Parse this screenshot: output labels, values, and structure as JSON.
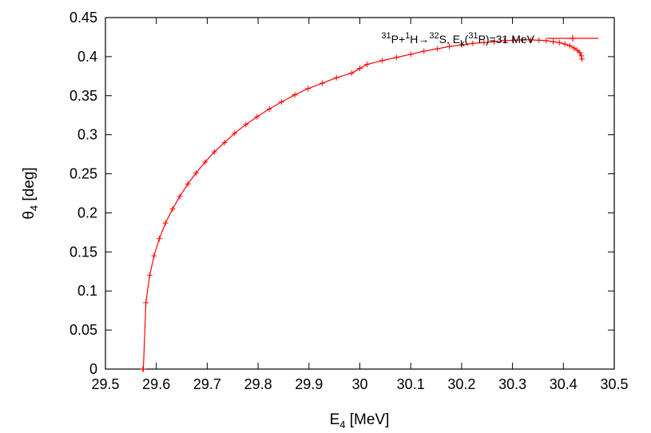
{
  "chart_data": {
    "type": "line",
    "xlabel": {
      "main": "E",
      "sub": "4",
      "unit": " [MeV]"
    },
    "ylabel": {
      "main": "θ",
      "sub": "4",
      "unit": " [deg]"
    },
    "xlim": [
      29.5,
      30.5
    ],
    "ylim": [
      0,
      0.45
    ],
    "x_ticks": [
      "29.5",
      "29.6",
      "29.7",
      "29.8",
      "29.9",
      "30",
      "30.1",
      "30.2",
      "30.3",
      "30.4",
      "30.5"
    ],
    "y_ticks": [
      "0",
      "0.05",
      "0.1",
      "0.15",
      "0.2",
      "0.25",
      "0.3",
      "0.35",
      "0.4",
      "0.45"
    ],
    "grid": false,
    "legend_position": "top-right",
    "series": [
      {
        "legend": {
          "p1_mass": "31",
          "p1": "P+",
          "p2_mass": "1",
          "p2": "H",
          "arrow": "→",
          "p3_mass": "32",
          "p3": "S, E",
          "k_sub": "k",
          "lp": "(",
          "p4_mass": "31",
          "p4": "P)=31 MeV"
        },
        "color": "#ff0000",
        "marker": "plus",
        "x": [
          29.5735,
          29.5745,
          29.5795,
          29.587,
          29.5955,
          29.606,
          29.618,
          29.632,
          29.646,
          29.662,
          29.678,
          29.696,
          29.714,
          29.734,
          29.754,
          29.776,
          29.798,
          29.822,
          29.846,
          29.872,
          29.898,
          29.926,
          29.954,
          29.984,
          30.0,
          30.014,
          30.044,
          30.072,
          30.1,
          30.126,
          30.152,
          30.176,
          30.2,
          30.222,
          30.244,
          30.264,
          30.284,
          30.302,
          30.32,
          30.336,
          30.352,
          30.366,
          30.38,
          30.392,
          30.403,
          30.4125,
          30.421,
          30.4275,
          30.4325,
          30.4355,
          30.4365
        ],
        "y": [
          0.0,
          0.0,
          0.085,
          0.12,
          0.145,
          0.167,
          0.187,
          0.205,
          0.221,
          0.237,
          0.251,
          0.265,
          0.278,
          0.29,
          0.302,
          0.313,
          0.323,
          0.333,
          0.342,
          0.351,
          0.359,
          0.366,
          0.373,
          0.379,
          0.385,
          0.39,
          0.395,
          0.399,
          0.403,
          0.407,
          0.41,
          0.413,
          0.415,
          0.417,
          0.418,
          0.419,
          0.4205,
          0.421,
          0.4215,
          0.4215,
          0.421,
          0.4205,
          0.419,
          0.418,
          0.416,
          0.414,
          0.411,
          0.408,
          0.405,
          0.401,
          0.397
        ]
      }
    ]
  }
}
